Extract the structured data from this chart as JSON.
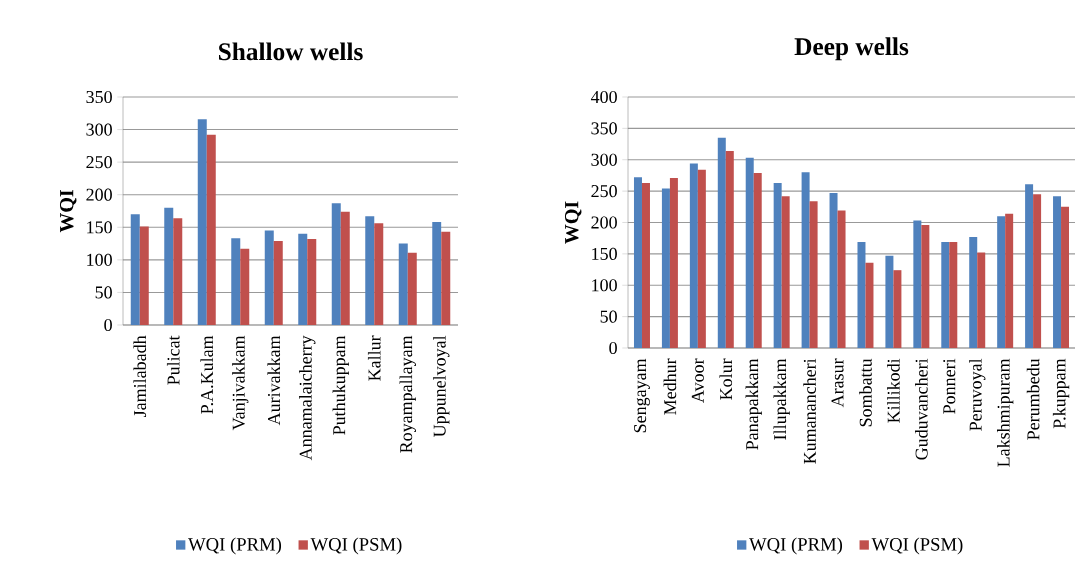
{
  "chart_data": [
    {
      "type": "bar",
      "title": "Shallow wells",
      "ylabel": "WQI",
      "categories": [
        "Jamilabadh",
        "Pulicat",
        "P.A.Kulam",
        "Vanjivakkam",
        "Aurivakkam",
        "Annamalaicherry",
        "Puthukuppam",
        "Kallur",
        "Royampallayam",
        "Uppunelvoyal"
      ],
      "series": [
        {
          "name": "WQI (PRM)",
          "color": "#4f81bd",
          "values": [
            170,
            180,
            316,
            133,
            145,
            140,
            187,
            167,
            125,
            158
          ]
        },
        {
          "name": "WQI (PSM)",
          "color": "#c0504d",
          "values": [
            151,
            164,
            292,
            117,
            129,
            132,
            174,
            156,
            111,
            143
          ]
        }
      ],
      "ylim": [
        0,
        350
      ],
      "yticks": [
        0,
        50,
        100,
        150,
        200,
        250,
        300,
        350
      ],
      "grid": "y",
      "legend": "bottom"
    },
    {
      "type": "bar",
      "title": "Deep wells",
      "ylabel": "WQI",
      "categories": [
        "Sengayam",
        "Medhur",
        "Avoor",
        "Kolur",
        "Panapakkam",
        "Illupakkam",
        "Kumanancheri",
        "Arasur",
        "Sombattu",
        "Killikodi",
        "Guduvancheri",
        "Ponneri",
        "Peruvoyal",
        "Lakshmipuram",
        "Perumbedu",
        "P.kuppam"
      ],
      "series": [
        {
          "name": "WQI (PRM)",
          "color": "#4f81bd",
          "values": [
            272,
            254,
            294,
            335,
            303,
            263,
            280,
            247,
            169,
            147,
            203,
            169,
            177,
            210,
            261,
            242
          ]
        },
        {
          "name": "WQI (PSM)",
          "color": "#c0504d",
          "values": [
            263,
            271,
            284,
            314,
            279,
            242,
            234,
            219,
            136,
            124,
            196,
            169,
            152,
            214,
            245,
            225
          ]
        }
      ],
      "ylim": [
        0,
        400
      ],
      "yticks": [
        0,
        50,
        100,
        150,
        200,
        250,
        300,
        350,
        400
      ],
      "grid": "y",
      "legend": "bottom"
    }
  ]
}
